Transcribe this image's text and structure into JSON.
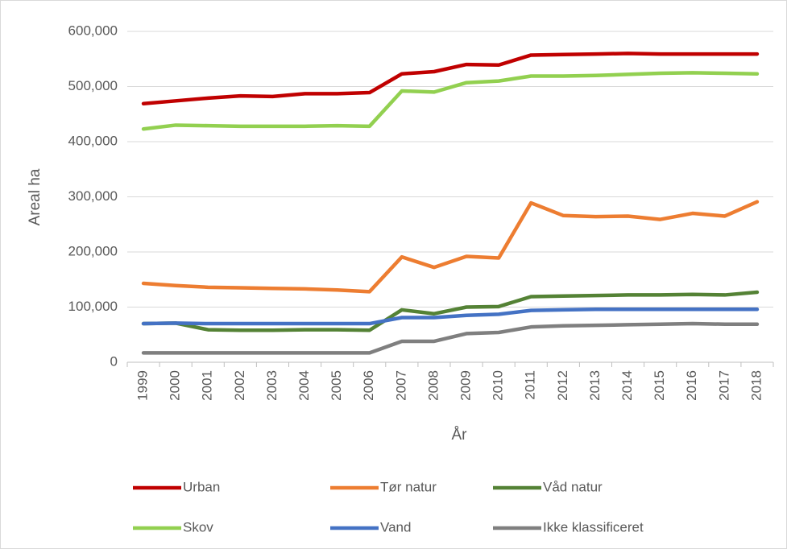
{
  "chart_data": {
    "type": "line",
    "y_label": "Areal ha",
    "x_label": "År",
    "categories": [
      "1999",
      "2000",
      "2001",
      "2002",
      "2003",
      "2004",
      "2005",
      "2006",
      "2007",
      "2008",
      "2009",
      "2010",
      "2011",
      "2012",
      "2013",
      "2014",
      "2015",
      "2016",
      "2017",
      "2018"
    ],
    "ylim": [
      0,
      600000
    ],
    "yticks": [
      0,
      {
        "value": 100000,
        "label": "100,000"
      },
      {
        "value": 200000,
        "label": "200,000"
      },
      {
        "value": 300000,
        "label": "300,000"
      },
      {
        "value": 400000,
        "label": "400,000"
      },
      {
        "value": 500000,
        "label": "500,000"
      },
      {
        "value": 600000,
        "label": "600,000"
      }
    ],
    "grid": true,
    "legend": "bottom",
    "series": [
      {
        "name": "Urban",
        "color": "#c00000",
        "values": [
          469000,
          474000,
          479000,
          483000,
          482000,
          487000,
          487000,
          489000,
          523000,
          527000,
          540000,
          539000,
          557000,
          558000,
          559000,
          560000,
          559000,
          559000,
          559000,
          559000
        ]
      },
      {
        "name": "Tør natur",
        "color": "#ed7d31",
        "values": [
          143000,
          139000,
          136000,
          135000,
          134000,
          133000,
          131000,
          128000,
          191000,
          172000,
          192000,
          189000,
          289000,
          266000,
          264000,
          265000,
          259000,
          270000,
          265000,
          291000
        ]
      },
      {
        "name": "Våd natur",
        "color": "#548235",
        "values": [
          70000,
          71000,
          59000,
          58000,
          58000,
          59000,
          59000,
          58000,
          95000,
          88000,
          100000,
          101000,
          119000,
          120000,
          121000,
          122000,
          122000,
          123000,
          122000,
          127000
        ]
      },
      {
        "name": "Skov",
        "color": "#92d050",
        "values": [
          423000,
          430000,
          429000,
          428000,
          428000,
          428000,
          429000,
          428000,
          492000,
          490000,
          507000,
          510000,
          519000,
          519000,
          520000,
          522000,
          524000,
          525000,
          524000,
          523000
        ]
      },
      {
        "name": "Vand",
        "color": "#4472c4",
        "values": [
          70000,
          71000,
          70000,
          70000,
          70000,
          70000,
          70000,
          70000,
          81000,
          81000,
          85000,
          87000,
          94000,
          95000,
          96000,
          96000,
          96000,
          96000,
          96000,
          96000
        ]
      },
      {
        "name": "Ikke klassificeret",
        "color": "#7f7f7f",
        "values": [
          17000,
          17000,
          17000,
          17000,
          17000,
          17000,
          17000,
          17000,
          38000,
          38000,
          52000,
          54000,
          64000,
          66000,
          67000,
          68000,
          69000,
          70000,
          69000,
          69000
        ]
      }
    ]
  }
}
